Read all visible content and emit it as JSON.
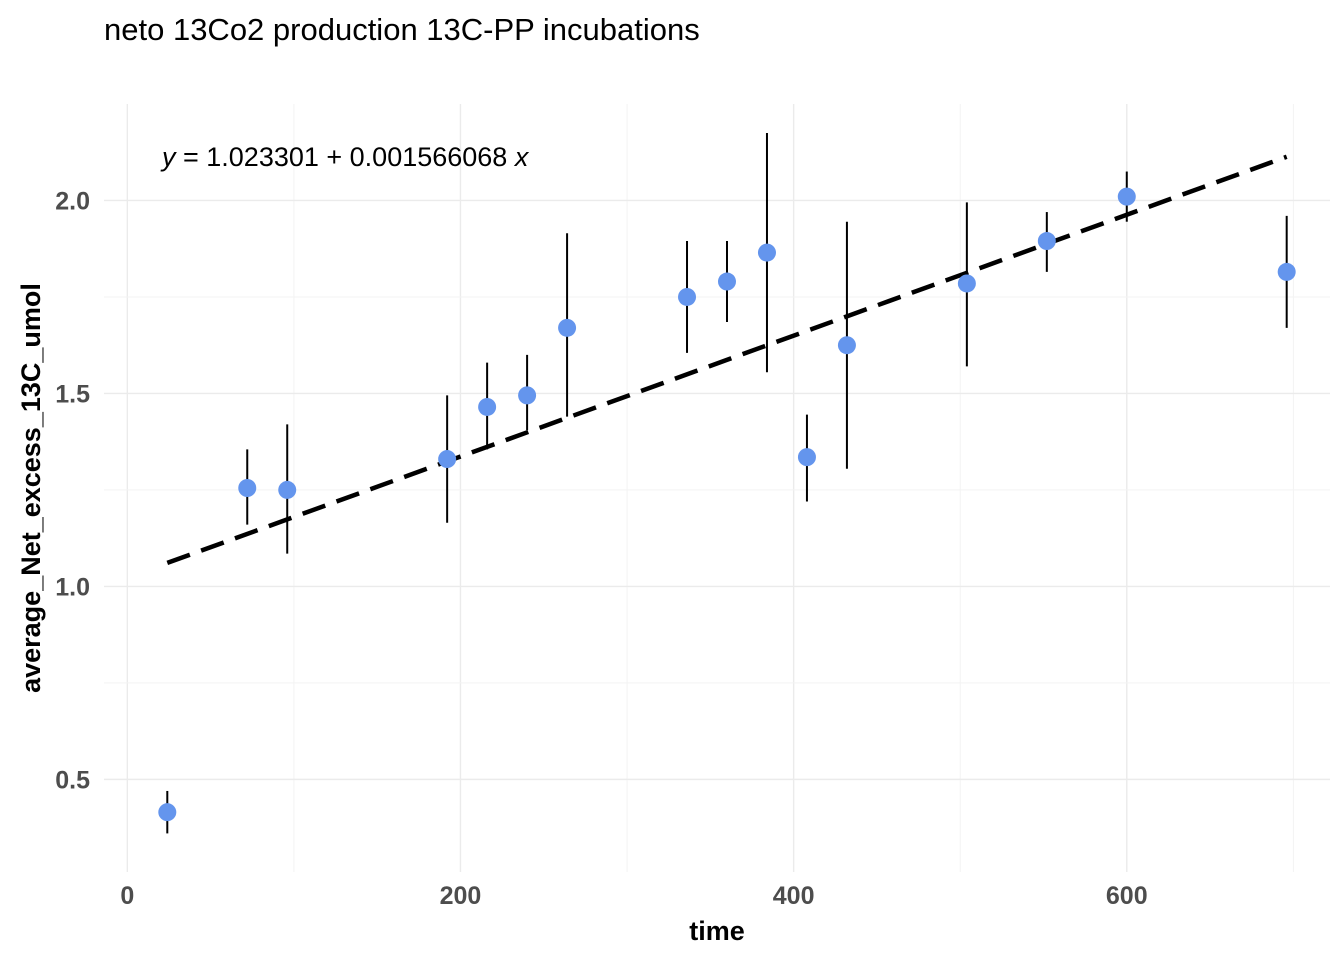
{
  "title": "neto 13Co2 production 13C-PP incubations",
  "chart_data": {
    "type": "scatter",
    "title": "neto 13Co2 production 13C-PP incubations",
    "xlabel": "time",
    "ylabel": "average_Net_excess_13C_umol",
    "xlim": [
      -14,
      722
    ],
    "ylim": [
      0.26,
      2.25
    ],
    "x_ticks": [
      0,
      200,
      400,
      600
    ],
    "x_tick_labels": [
      "0",
      "200",
      "400",
      "600"
    ],
    "y_ticks": [
      0.5,
      1.0,
      1.5,
      2.0
    ],
    "y_tick_labels": [
      "0.5",
      "1.0",
      "1.5",
      "2.0"
    ],
    "grid": true,
    "point_color": "#6495ED",
    "errorbar_color": "#000000",
    "trend_color": "#000000",
    "equation": {
      "y_var": "y",
      "equals": " = 1.023301 + 0.001566068 ",
      "x_var": "x"
    },
    "trendline": {
      "style": "dashed",
      "intercept": 1.023301,
      "slope": 0.001566068,
      "x_range": [
        24,
        696
      ]
    },
    "points": [
      {
        "x": 24,
        "y": 0.415,
        "ymin": 0.36,
        "ymax": 0.47
      },
      {
        "x": 72,
        "y": 1.255,
        "ymin": 1.16,
        "ymax": 1.355
      },
      {
        "x": 96,
        "y": 1.25,
        "ymin": 1.085,
        "ymax": 1.42
      },
      {
        "x": 192,
        "y": 1.33,
        "ymin": 1.165,
        "ymax": 1.495
      },
      {
        "x": 216,
        "y": 1.465,
        "ymin": 1.355,
        "ymax": 1.58
      },
      {
        "x": 240,
        "y": 1.495,
        "ymin": 1.405,
        "ymax": 1.6
      },
      {
        "x": 264,
        "y": 1.67,
        "ymin": 1.44,
        "ymax": 1.915
      },
      {
        "x": 336,
        "y": 1.75,
        "ymin": 1.605,
        "ymax": 1.895
      },
      {
        "x": 360,
        "y": 1.79,
        "ymin": 1.685,
        "ymax": 1.895
      },
      {
        "x": 384,
        "y": 1.865,
        "ymin": 1.555,
        "ymax": 2.175
      },
      {
        "x": 408,
        "y": 1.335,
        "ymin": 1.22,
        "ymax": 1.445
      },
      {
        "x": 432,
        "y": 1.625,
        "ymin": 1.305,
        "ymax": 1.945
      },
      {
        "x": 504,
        "y": 1.785,
        "ymin": 1.57,
        "ymax": 1.995
      },
      {
        "x": 552,
        "y": 1.895,
        "ymin": 1.815,
        "ymax": 1.97
      },
      {
        "x": 600,
        "y": 2.01,
        "ymin": 1.945,
        "ymax": 2.075
      },
      {
        "x": 696,
        "y": 1.815,
        "ymin": 1.67,
        "ymax": 1.96
      }
    ]
  }
}
